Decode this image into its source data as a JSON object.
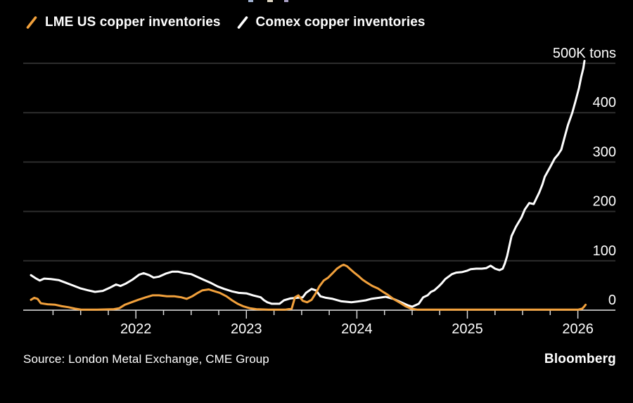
{
  "page": {
    "background": "#000000",
    "text_color": "#FFFFFF"
  },
  "legend": {
    "items": [
      {
        "label": "LME US copper inventories",
        "color": "#F2A13C"
      },
      {
        "label": "Comex copper inventories",
        "color": "#FFFFFF"
      }
    ]
  },
  "footer": {
    "source": "Source: London Metal Exchange, CME Group",
    "brand": "Bloomberg"
  },
  "chart_data": {
    "type": "line",
    "unit": "K tons",
    "ylim": [
      0,
      500
    ],
    "y_ticks": [
      0,
      100,
      200,
      300,
      400,
      500
    ],
    "y_tick_labels": [
      "0",
      "100",
      "200",
      "300",
      "400",
      "500K tons"
    ],
    "xlim": [
      2020.98,
      2026.34
    ],
    "x_year_labels": [
      "2022",
      "2023",
      "2024",
      "2025",
      "2026"
    ],
    "x_minor_tick_step": 0.25,
    "x_tick_range": [
      2021.25,
      2026.0
    ],
    "grid": "horizontal-only",
    "legend_position": "top-left",
    "colors": {
      "grid": "#2D2D2D",
      "axis": "#E8E8E8",
      "tick": "#D9D9D9",
      "label": "#FFFFFF"
    },
    "series": [
      {
        "name": "LME US copper inventories",
        "color": "#F2A13C",
        "points": [
          [
            2021.05,
            21
          ],
          [
            2021.08,
            25
          ],
          [
            2021.11,
            23
          ],
          [
            2021.14,
            14
          ],
          [
            2021.2,
            12
          ],
          [
            2021.27,
            11
          ],
          [
            2021.33,
            8
          ],
          [
            2021.39,
            6
          ],
          [
            2021.45,
            3
          ],
          [
            2021.51,
            1
          ],
          [
            2021.65,
            1
          ],
          [
            2021.8,
            2
          ],
          [
            2021.85,
            4
          ],
          [
            2021.9,
            11
          ],
          [
            2021.96,
            16
          ],
          [
            2022.02,
            21
          ],
          [
            2022.09,
            26
          ],
          [
            2022.15,
            30
          ],
          [
            2022.21,
            30
          ],
          [
            2022.28,
            28
          ],
          [
            2022.35,
            28
          ],
          [
            2022.41,
            26
          ],
          [
            2022.46,
            23
          ],
          [
            2022.51,
            28
          ],
          [
            2022.56,
            35
          ],
          [
            2022.6,
            40
          ],
          [
            2022.66,
            42
          ],
          [
            2022.7,
            39
          ],
          [
            2022.76,
            35
          ],
          [
            2022.82,
            28
          ],
          [
            2022.87,
            20
          ],
          [
            2022.92,
            13
          ],
          [
            2022.97,
            8
          ],
          [
            2023.03,
            4
          ],
          [
            2023.09,
            2
          ],
          [
            2023.2,
            1
          ],
          [
            2023.35,
            1
          ],
          [
            2023.41,
            3
          ],
          [
            2023.44,
            26
          ],
          [
            2023.47,
            30
          ],
          [
            2023.51,
            19
          ],
          [
            2023.55,
            16
          ],
          [
            2023.59,
            21
          ],
          [
            2023.63,
            35
          ],
          [
            2023.66,
            48
          ],
          [
            2023.7,
            60
          ],
          [
            2023.74,
            66
          ],
          [
            2023.78,
            75
          ],
          [
            2023.82,
            84
          ],
          [
            2023.86,
            90
          ],
          [
            2023.88,
            92
          ],
          [
            2023.91,
            89
          ],
          [
            2023.94,
            83
          ],
          [
            2023.97,
            77
          ],
          [
            2024.01,
            70
          ],
          [
            2024.05,
            62
          ],
          [
            2024.09,
            56
          ],
          [
            2024.14,
            49
          ],
          [
            2024.19,
            44
          ],
          [
            2024.23,
            38
          ],
          [
            2024.28,
            31
          ],
          [
            2024.33,
            23
          ],
          [
            2024.39,
            15
          ],
          [
            2024.44,
            8
          ],
          [
            2024.49,
            3
          ],
          [
            2024.55,
            1
          ],
          [
            2024.7,
            1
          ],
          [
            2024.9,
            1
          ],
          [
            2025.1,
            1
          ],
          [
            2025.3,
            1
          ],
          [
            2025.5,
            1
          ],
          [
            2025.7,
            1
          ],
          [
            2025.9,
            1
          ],
          [
            2026.0,
            1
          ],
          [
            2026.04,
            3
          ],
          [
            2026.06,
            8
          ],
          [
            2026.07,
            11
          ]
        ]
      },
      {
        "name": "Comex copper inventories",
        "color": "#FFFFFF",
        "points": [
          [
            2021.05,
            71
          ],
          [
            2021.09,
            65
          ],
          [
            2021.13,
            60
          ],
          [
            2021.17,
            64
          ],
          [
            2021.23,
            63
          ],
          [
            2021.3,
            61
          ],
          [
            2021.36,
            56
          ],
          [
            2021.43,
            50
          ],
          [
            2021.5,
            44
          ],
          [
            2021.57,
            40
          ],
          [
            2021.63,
            37
          ],
          [
            2021.7,
            39
          ],
          [
            2021.76,
            45
          ],
          [
            2021.82,
            52
          ],
          [
            2021.86,
            49
          ],
          [
            2021.91,
            54
          ],
          [
            2021.97,
            62
          ],
          [
            2022.03,
            72
          ],
          [
            2022.07,
            75
          ],
          [
            2022.12,
            71
          ],
          [
            2022.16,
            66
          ],
          [
            2022.21,
            68
          ],
          [
            2022.27,
            74
          ],
          [
            2022.33,
            78
          ],
          [
            2022.38,
            78
          ],
          [
            2022.44,
            75
          ],
          [
            2022.5,
            73
          ],
          [
            2022.56,
            67
          ],
          [
            2022.62,
            61
          ],
          [
            2022.68,
            55
          ],
          [
            2022.74,
            48
          ],
          [
            2022.8,
            43
          ],
          [
            2022.87,
            38
          ],
          [
            2022.93,
            35
          ],
          [
            2023.0,
            34
          ],
          [
            2023.06,
            30
          ],
          [
            2023.13,
            26
          ],
          [
            2023.16,
            20
          ],
          [
            2023.19,
            16
          ],
          [
            2023.23,
            13
          ],
          [
            2023.3,
            13
          ],
          [
            2023.34,
            20
          ],
          [
            2023.4,
            24
          ],
          [
            2023.46,
            25
          ],
          [
            2023.51,
            26
          ],
          [
            2023.54,
            35
          ],
          [
            2023.59,
            43
          ],
          [
            2023.63,
            40
          ],
          [
            2023.67,
            28
          ],
          [
            2023.72,
            25
          ],
          [
            2023.78,
            23
          ],
          [
            2023.86,
            18
          ],
          [
            2023.95,
            16
          ],
          [
            2024.02,
            18
          ],
          [
            2024.08,
            20
          ],
          [
            2024.13,
            23
          ],
          [
            2024.2,
            25
          ],
          [
            2024.26,
            27
          ],
          [
            2024.33,
            23
          ],
          [
            2024.4,
            16
          ],
          [
            2024.46,
            10
          ],
          [
            2024.5,
            7
          ],
          [
            2024.56,
            13
          ],
          [
            2024.6,
            26
          ],
          [
            2024.64,
            30
          ],
          [
            2024.67,
            37
          ],
          [
            2024.7,
            40
          ],
          [
            2024.74,
            48
          ],
          [
            2024.77,
            55
          ],
          [
            2024.8,
            63
          ],
          [
            2024.83,
            68
          ],
          [
            2024.86,
            73
          ],
          [
            2024.9,
            76
          ],
          [
            2024.95,
            77
          ],
          [
            2025.0,
            80
          ],
          [
            2025.03,
            83
          ],
          [
            2025.08,
            84
          ],
          [
            2025.13,
            84
          ],
          [
            2025.17,
            85
          ],
          [
            2025.21,
            90
          ],
          [
            2025.25,
            84
          ],
          [
            2025.29,
            81
          ],
          [
            2025.32,
            84
          ],
          [
            2025.34,
            95
          ],
          [
            2025.36,
            110
          ],
          [
            2025.38,
            130
          ],
          [
            2025.4,
            150
          ],
          [
            2025.44,
            169
          ],
          [
            2025.49,
            188
          ],
          [
            2025.52,
            204
          ],
          [
            2025.56,
            217
          ],
          [
            2025.6,
            215
          ],
          [
            2025.65,
            238
          ],
          [
            2025.68,
            255
          ],
          [
            2025.7,
            270
          ],
          [
            2025.75,
            290
          ],
          [
            2025.79,
            307
          ],
          [
            2025.82,
            315
          ],
          [
            2025.85,
            325
          ],
          [
            2025.88,
            350
          ],
          [
            2025.91,
            375
          ],
          [
            2025.95,
            400
          ],
          [
            2025.98,
            424
          ],
          [
            2026.01,
            450
          ],
          [
            2026.03,
            472
          ],
          [
            2026.05,
            490
          ],
          [
            2026.06,
            505
          ]
        ]
      }
    ]
  }
}
